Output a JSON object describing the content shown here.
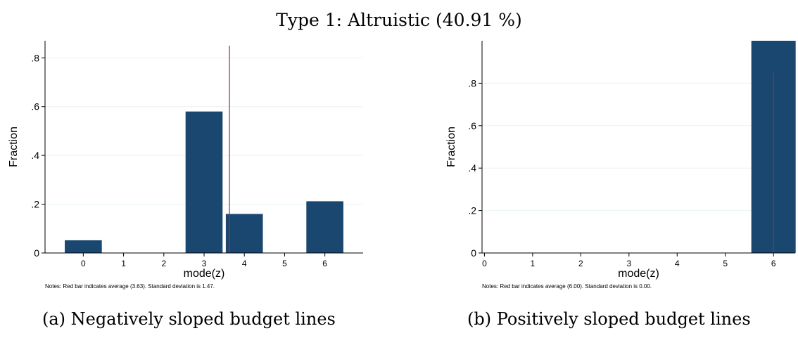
{
  "title": "Type 1: Altruistic (40.91 %)",
  "captions": {
    "a": "(a) Negatively sloped budget lines",
    "b": "(b) Positively sloped budget lines"
  },
  "colors": {
    "bar": "#1a476f",
    "mean_line": "#90353b",
    "grid": "#eaf2f3"
  },
  "chart_data": [
    {
      "type": "bar",
      "xlabel": "mode(z)",
      "ylabel": "Fraction",
      "categories": [
        "0",
        "1",
        "2",
        "3",
        "4",
        "5",
        "6"
      ],
      "values": [
        0.052,
        0,
        0,
        0.58,
        0.16,
        0,
        0.212
      ],
      "mean": 3.63,
      "mean_line_top": 0.85,
      "yticks": [
        0,
        0.2,
        0.4,
        0.6,
        0.8
      ],
      "ytick_labels": [
        "0",
        ".2",
        ".4",
        ".6",
        ".8"
      ],
      "ylim": [
        0,
        0.87
      ],
      "xlim": [
        -0.95,
        6.95
      ],
      "bar_width": 0.92,
      "note": "Notes: Red bar indicates average (3.63). Standard deviation is 1.47.",
      "grid": true
    },
    {
      "type": "bar",
      "xlabel": "mode(z)",
      "ylabel": "Fraction",
      "categories": [
        "0",
        "1",
        "2",
        "3",
        "4",
        "5",
        "6"
      ],
      "values": [
        0,
        0,
        0,
        0,
        0,
        0,
        1.0
      ],
      "mean": 6.0,
      "mean_line_top": 0.85,
      "yticks": [
        0,
        0.2,
        0.4,
        0.6,
        0.8
      ],
      "ytick_labels": [
        "0",
        ".2",
        ".4",
        ".6",
        ".8"
      ],
      "ylim": [
        0,
        1.0
      ],
      "xlim": [
        -0.05,
        6.45
      ],
      "bar_width": 0.92,
      "note": "Notes: Red bar indicates average (6.00). Standard deviation is 0.00.",
      "grid": true
    }
  ]
}
